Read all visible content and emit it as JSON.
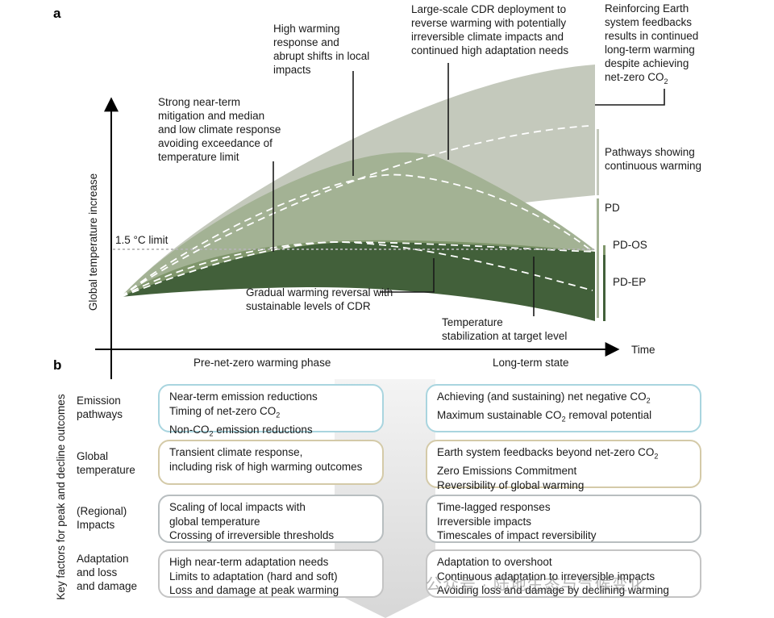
{
  "panel_a": {
    "panel_label": "a",
    "y_axis_label": "Global temperature increase",
    "x_axis_label": "Time",
    "limit_label": "1.5 °C limit",
    "phase_left": "Pre-net-zero warming phase",
    "phase_right": "Long-term state",
    "annotations": {
      "strong_mitigation": [
        "Strong near-term",
        "mitigation and median",
        "and low climate response",
        "avoiding exceedance of",
        "temperature limit"
      ],
      "high_warming": [
        "High warming",
        "response and",
        "abrupt shifts in local",
        "impacts"
      ],
      "cdr_deployment": [
        "Large-scale CDR deployment to",
        "reverse warming with potentially",
        "irreversible climate impacts and",
        "continued high adaptation needs"
      ],
      "earth_feedbacks_lines": [
        "Reinforcing Earth",
        "system feedbacks",
        "results in continued",
        "long-term warming",
        "despite achieving"
      ],
      "earth_feedbacks_last": "net-zero CO",
      "earth_feedbacks_sub": "2",
      "gradual_reversal": [
        "Gradual warming reversal with",
        "sustainable levels of CDR"
      ],
      "stabilization": [
        "Temperature",
        "stabilization at target level"
      ],
      "continuous": [
        "Pathways showing",
        "continuous warming"
      ]
    },
    "bracket_labels": [
      "PD",
      "PD-OS",
      "PD-EP"
    ],
    "colors": {
      "band_light": "#c4c9bc",
      "band_mid": "#a3b294",
      "band_green": "#7f966b",
      "band_dark": "#42603a",
      "limit_line": "#b5b5b5"
    }
  },
  "panel_b": {
    "panel_label": "b",
    "y_axis_label": "Key factors for peak and decline outcomes",
    "rows": [
      {
        "label": "Emission\npathways",
        "left": [
          {
            "text": "Near-term emission reductions"
          },
          {
            "text": "Timing of net-zero CO",
            "sub": "2"
          },
          {
            "text": "Non-CO",
            "sub": "2",
            "after": " emission reductions"
          }
        ],
        "right": [
          {
            "text": "Achieving (and sustaining) net negative CO",
            "sub": "2"
          },
          {
            "text": "Maximum sustainable CO",
            "sub": "2",
            "after": " removal potential"
          }
        ]
      },
      {
        "label": "Global\ntemperature",
        "left": [
          {
            "text": "Transient climate response,"
          },
          {
            "text": "including risk of high warming outcomes"
          }
        ],
        "right": [
          {
            "text": "Earth system feedbacks beyond net-zero CO",
            "sub": "2"
          },
          {
            "text": "Zero Emissions Commitment"
          },
          {
            "text": "Reversibility of global warming"
          }
        ]
      },
      {
        "label": "(Regional)\nImpacts",
        "left": [
          {
            "text": "Scaling of local impacts with"
          },
          {
            "text": "global temperature"
          },
          {
            "text": "Crossing of irreversible thresholds"
          }
        ],
        "right": [
          {
            "text": "Time-lagged responses"
          },
          {
            "text": "Irreversible impacts"
          },
          {
            "text": "Timescales of impact reversibility"
          }
        ]
      },
      {
        "label": "Adaptation\nand loss\nand damage",
        "left": [
          {
            "text": "High near-term adaptation needs"
          },
          {
            "text": "Limits to adaptation (hard and soft)"
          },
          {
            "text": "Loss and damage at peak warming"
          }
        ],
        "right": [
          {
            "text": "Adaptation to overshoot"
          },
          {
            "text": "Continuous adaptation to irreversible impacts"
          },
          {
            "text": "Avoiding loss and damage by declining warming"
          }
        ]
      }
    ]
  },
  "watermark": "公众号 · 陆地生态与气候变化"
}
